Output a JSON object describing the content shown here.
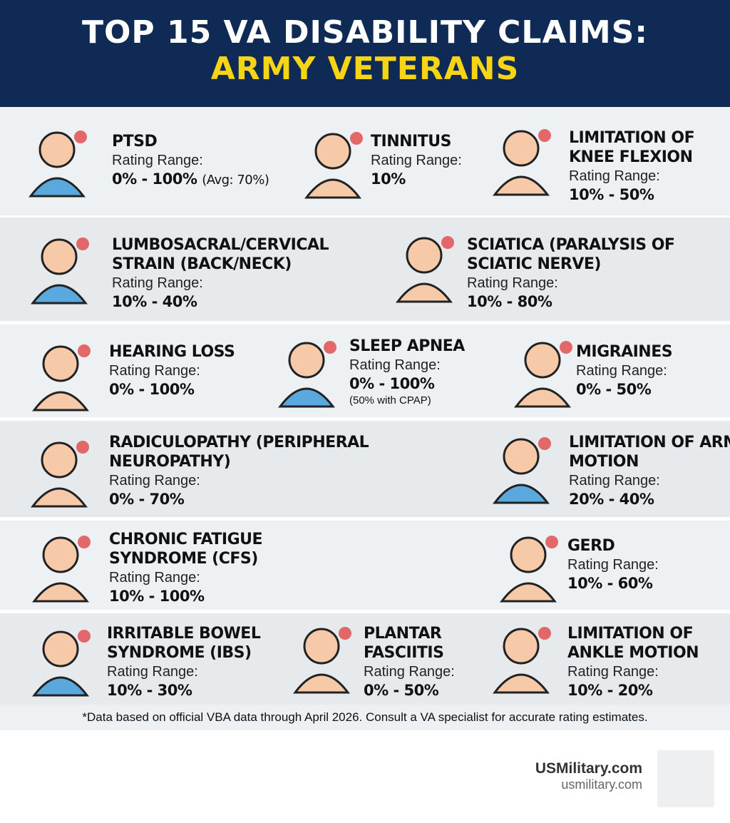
{
  "title": {
    "line1": "TOP 15 VA DISABILITY CLAIMS:",
    "line2": "ARMY VETERANS"
  },
  "items": [
    {
      "name": "PTSD",
      "label": "Rating Range:",
      "range": "0% - 100%",
      "extra": "(Avg: 70%)",
      "icon": "ptsd-head-icon"
    },
    {
      "name": "TINNITUS",
      "label": "Rating Range:",
      "range": "10%",
      "icon": "ear-bell-icon"
    },
    {
      "name": "LIMITATION OF KNEE FLEXION",
      "label": "Rating Range:",
      "range": "10% - 50%",
      "icon": "knee-icon"
    },
    {
      "name": "LUMBOSACRAL/CERVICAL STRAIN (BACK/NECK)",
      "label": "Rating Range:",
      "range": "10% - 40%",
      "icon": "spine-neck-icon"
    },
    {
      "name": "SCIATICA (PARALYSIS OF SCIATIC NERVE)",
      "label": "Rating Range:",
      "range": "10% - 80%",
      "icon": "leg-nerve-icon"
    },
    {
      "name": "HEARING LOSS",
      "label": "Rating Range:",
      "range": "0% - 100%",
      "icon": "person-ear-icon"
    },
    {
      "name": "SLEEP APNEA",
      "label": "Rating Range:",
      "range": "0% - 100%",
      "note": "(50% with CPAP)",
      "icon": "cpap-icon"
    },
    {
      "name": "MIGRAINES",
      "label": "Rating Range:",
      "range": "0% - 50%",
      "icon": "migraine-head-icon"
    },
    {
      "name": "RADICULOPATHY (PERIPHERAL NEUROPATHY)",
      "label": "Rating Range:",
      "range": "0% - 70%",
      "icon": "neuron-hand-icon"
    },
    {
      "name": "LIMITATION OF ARM MOTION",
      "label": "Rating Range:",
      "range": "20% - 40%",
      "icon": "arm-icon"
    },
    {
      "name": "CHRONIC FATIGUE SYNDROME (CFS)",
      "label": "Rating Range:",
      "range": "10% - 100%",
      "icon": "tired-person-icon"
    },
    {
      "name": "GERD",
      "label": "Rating Range:",
      "range": "10% - 60%",
      "icon": "stomach-icon"
    },
    {
      "name": "IRRITABLE BOWEL SYNDROME (IBS)",
      "label": "Rating Range:",
      "range": "10% - 30%",
      "icon": "intestine-icon"
    },
    {
      "name": "PLANTAR FASCIITIS",
      "label": "Rating Range:",
      "range": "0% - 50%",
      "icon": "foot-icon"
    },
    {
      "name": "LIMITATION OF ANKLE MOTION",
      "label": "Rating Range:",
      "range": "10% - 20%",
      "icon": "ankle-icon"
    }
  ],
  "footnote": "*Data based on official VBA data through April 2026. Consult a VA specialist for accurate rating estimates.",
  "brand": {
    "name": "USMilitary.com",
    "url": "usmilitary.com"
  },
  "colors": {
    "header": "#0f2a55",
    "accent": "#f7d515",
    "skin": "#f6c9a8",
    "shirt": "#5aa9de",
    "pain": "#e04646"
  }
}
